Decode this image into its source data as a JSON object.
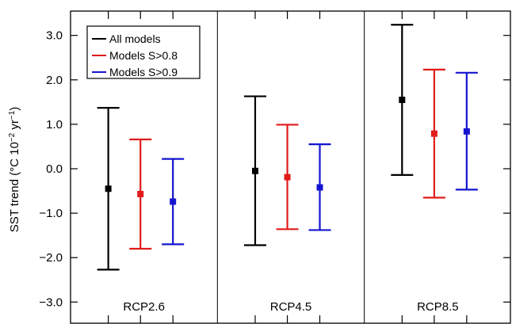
{
  "chart_data": {
    "type": "errorbar",
    "ylabel": "SST trend (°C 10",
    "ylabel_exp1": "−2",
    "ylabel_mid": " yr",
    "ylabel_exp2": "−1",
    "ylabel_end": ")",
    "ylim": [
      -3.5,
      3.6
    ],
    "yticks": [
      -3.0,
      -2.0,
      -1.0,
      0.0,
      1.0,
      2.0,
      3.0
    ],
    "ytick_labels": [
      "−3.0",
      "−2.0",
      "−1.0",
      "0.0",
      "1.0",
      "2.0",
      "3.0"
    ],
    "categories": [
      "RCP2.6",
      "RCP4.5",
      "RCP8.5"
    ],
    "legend_position": "top-left",
    "series": [
      {
        "name": "All models",
        "color": "#000000",
        "mean": [
          -0.45,
          -0.05,
          1.55
        ],
        "low": [
          -2.27,
          -1.72,
          -0.14
        ],
        "high": [
          1.37,
          1.63,
          3.24
        ]
      },
      {
        "name": "Models S>0.8",
        "color": "#e01b1b",
        "mean": [
          -0.57,
          -0.19,
          0.79
        ],
        "low": [
          -1.8,
          -1.36,
          -0.65
        ],
        "high": [
          0.66,
          0.99,
          2.23
        ]
      },
      {
        "name": "Models S>0.9",
        "color": "#1414d0",
        "mean": [
          -0.74,
          -0.42,
          0.84
        ],
        "low": [
          -1.7,
          -1.38,
          -0.47
        ],
        "high": [
          0.22,
          0.55,
          2.16
        ]
      }
    ]
  }
}
